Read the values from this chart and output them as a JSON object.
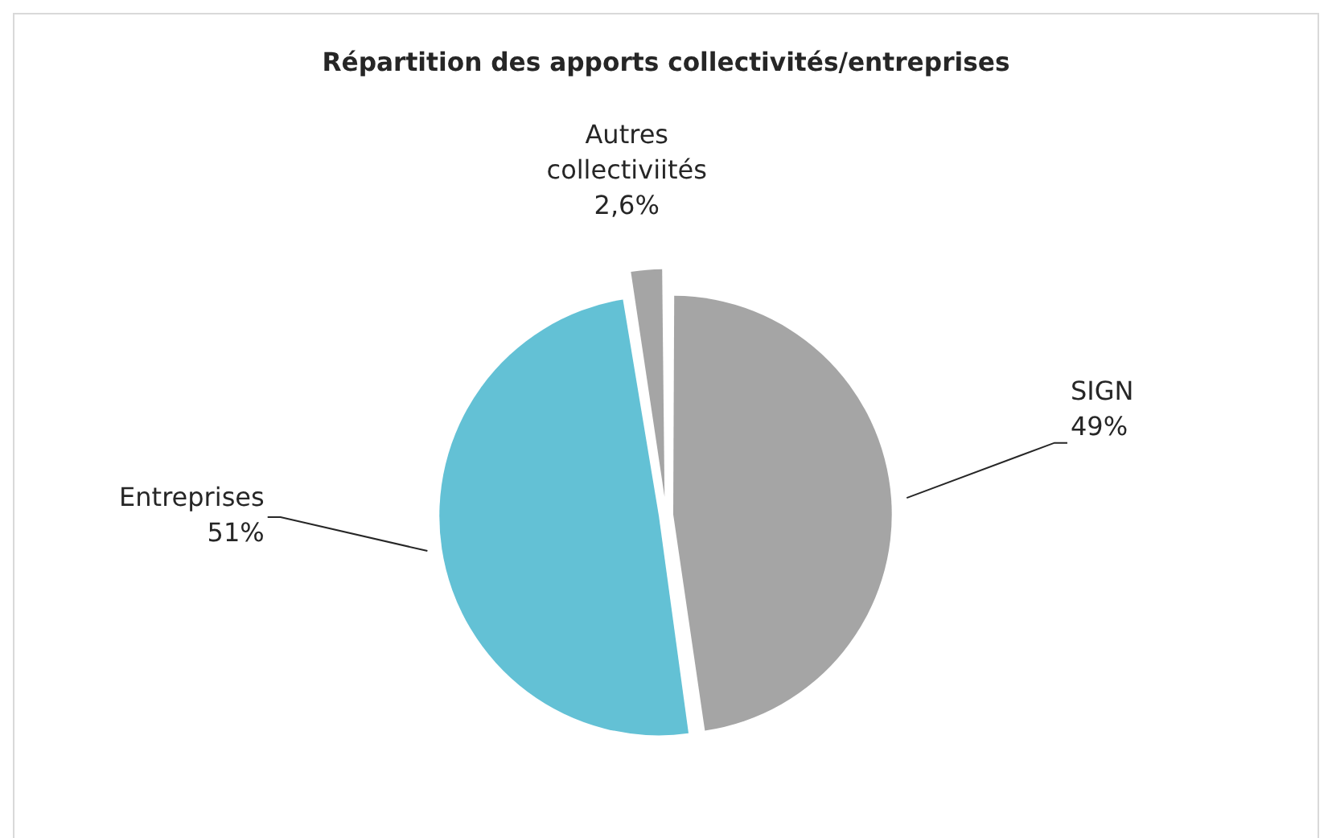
{
  "chart_data": {
    "type": "pie",
    "title": "Répartition des apports collectivités/entreprises",
    "categories": [
      "SIGN",
      "Entreprises",
      "Autres collectiviités"
    ],
    "values": [
      49,
      51,
      2.6
    ],
    "colors": [
      "#a5a5a5",
      "#63c1d5",
      "#a5a5a5"
    ],
    "value_labels": [
      "49%",
      "51%",
      "2,6%"
    ],
    "legend": false
  }
}
